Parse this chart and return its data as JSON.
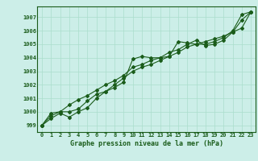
{
  "xlabel": "Graphe pression niveau de la mer (hPa)",
  "bg_color": "#cceee8",
  "grid_color": "#aaddcc",
  "line_color": "#1a5c1a",
  "xlim": [
    -0.5,
    23.5
  ],
  "ylim": [
    998.5,
    1007.8
  ],
  "yticks": [
    999,
    1000,
    1001,
    1002,
    1003,
    1004,
    1005,
    1006,
    1007
  ],
  "xticks": [
    0,
    1,
    2,
    3,
    4,
    5,
    6,
    7,
    8,
    9,
    10,
    11,
    12,
    13,
    14,
    15,
    16,
    17,
    18,
    19,
    20,
    21,
    22,
    23
  ],
  "line1": [
    999.0,
    999.9,
    1000.0,
    1000.0,
    1000.2,
    1000.8,
    1001.3,
    1001.5,
    1001.8,
    1002.2,
    1003.9,
    1004.1,
    1004.0,
    1004.0,
    1004.1,
    1005.2,
    1005.1,
    1005.0,
    1005.0,
    1005.2,
    1005.5,
    1006.0,
    1007.2,
    1007.4
  ],
  "line2": [
    999.0,
    999.5,
    999.9,
    999.6,
    1000.0,
    1000.3,
    1001.0,
    1001.5,
    1002.0,
    1002.5,
    1003.0,
    1003.3,
    1003.5,
    1003.8,
    1004.1,
    1004.4,
    1004.8,
    1005.0,
    1005.2,
    1005.4,
    1005.6,
    1005.9,
    1006.2,
    1007.4
  ],
  "line3": [
    999.0,
    999.7,
    1000.0,
    1000.5,
    1000.9,
    1001.2,
    1001.6,
    1002.0,
    1002.3,
    1002.7,
    1003.3,
    1003.5,
    1003.8,
    1004.0,
    1004.4,
    1004.6,
    1005.0,
    1005.3,
    1004.9,
    1005.0,
    1005.3,
    1005.9,
    1006.8,
    1007.4
  ],
  "ylabel_fontsize": 5.0,
  "xlabel_fontsize": 6.0,
  "tick_fontsize": 5.0,
  "marker_size": 2.0,
  "line_width": 0.8
}
